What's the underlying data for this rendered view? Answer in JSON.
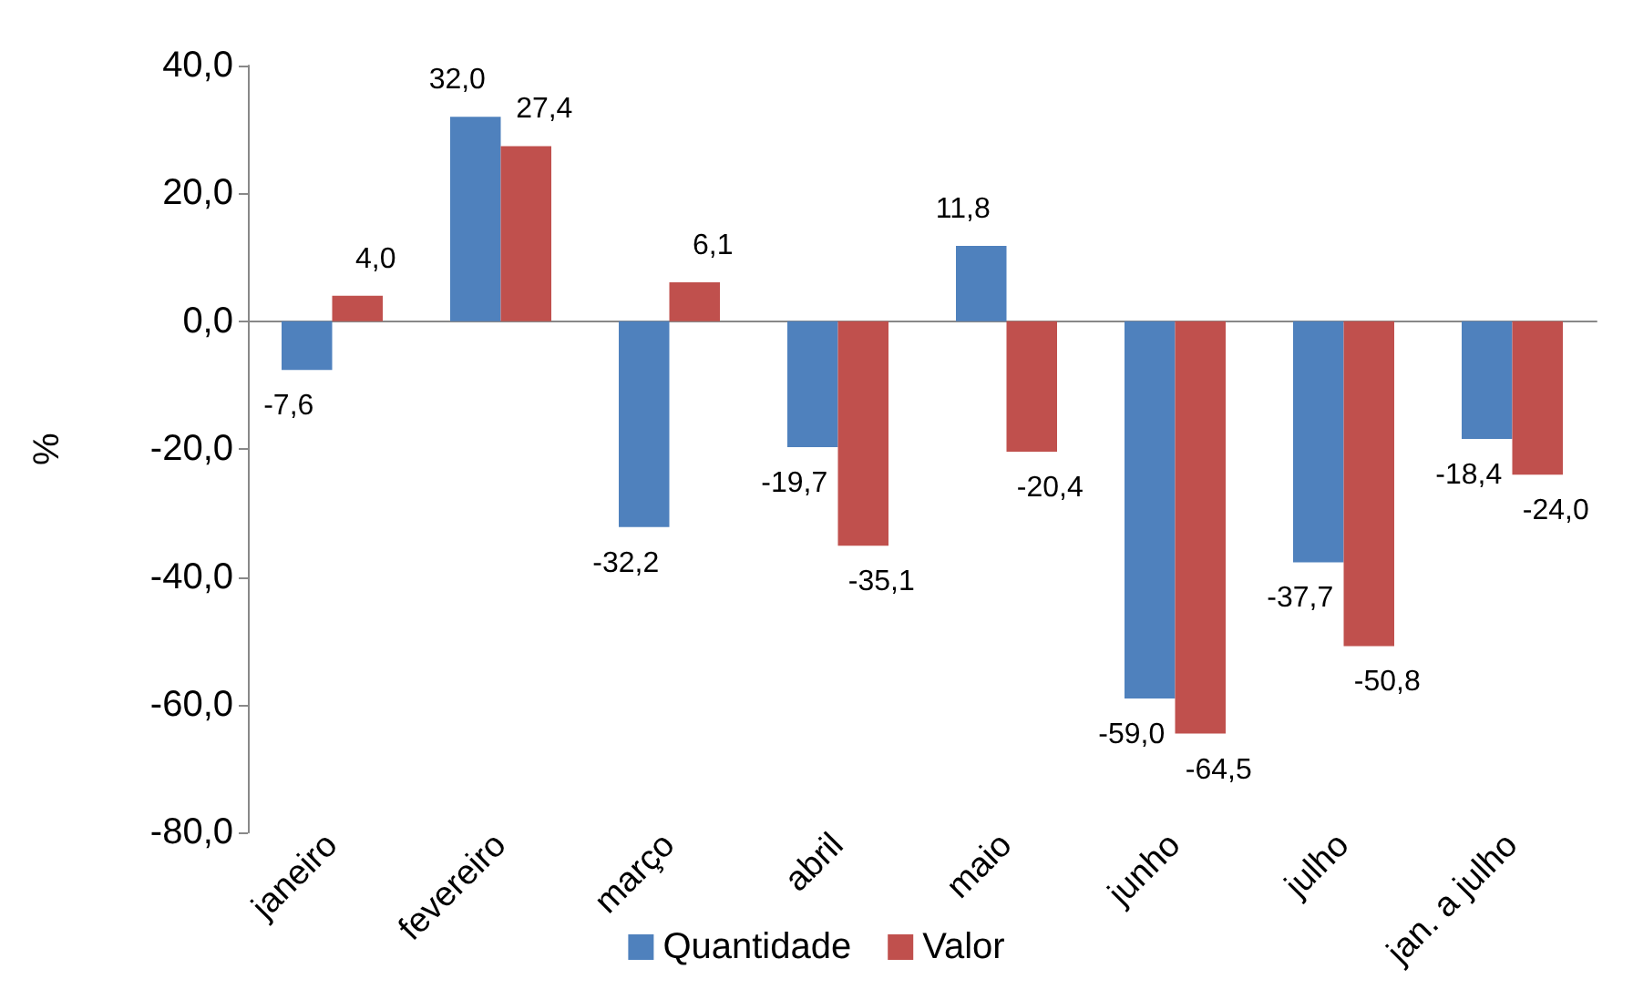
{
  "chart_data": {
    "type": "bar",
    "ylabel": "%",
    "categories": [
      "janeiro",
      "fevereiro",
      "março",
      "abril",
      "maio",
      "junho",
      "julho",
      "jan. a julho"
    ],
    "series": [
      {
        "name": "Quantidade",
        "color": "#4f81bd",
        "values": [
          -7.6,
          32.0,
          -32.2,
          -19.7,
          11.8,
          -59.0,
          -37.7,
          -18.4
        ],
        "value_labels": [
          "-7,6",
          "32,0",
          "-32,2",
          "-19,7",
          "11,8",
          "-59,0",
          "-37,7",
          "-18,4"
        ]
      },
      {
        "name": "Valor",
        "color": "#c0504d",
        "values": [
          4.0,
          27.4,
          6.1,
          -35.1,
          -20.4,
          -64.5,
          -50.8,
          -24.0
        ],
        "value_labels": [
          "4,0",
          "27,4",
          "6,1",
          "-35,1",
          "-20,4",
          "-64,5",
          "-50,8",
          "-24,0"
        ]
      }
    ],
    "ylim": [
      -80,
      40
    ],
    "yticks": [
      {
        "value": -80,
        "label": "-80,0"
      },
      {
        "value": -60,
        "label": "-60,0"
      },
      {
        "value": -40,
        "label": "-40,0"
      },
      {
        "value": -20,
        "label": "-20,0"
      },
      {
        "value": 0,
        "label": "0,0"
      },
      {
        "value": 20,
        "label": "20,0"
      },
      {
        "value": 40,
        "label": "40,0"
      }
    ],
    "legend": "bottom"
  }
}
